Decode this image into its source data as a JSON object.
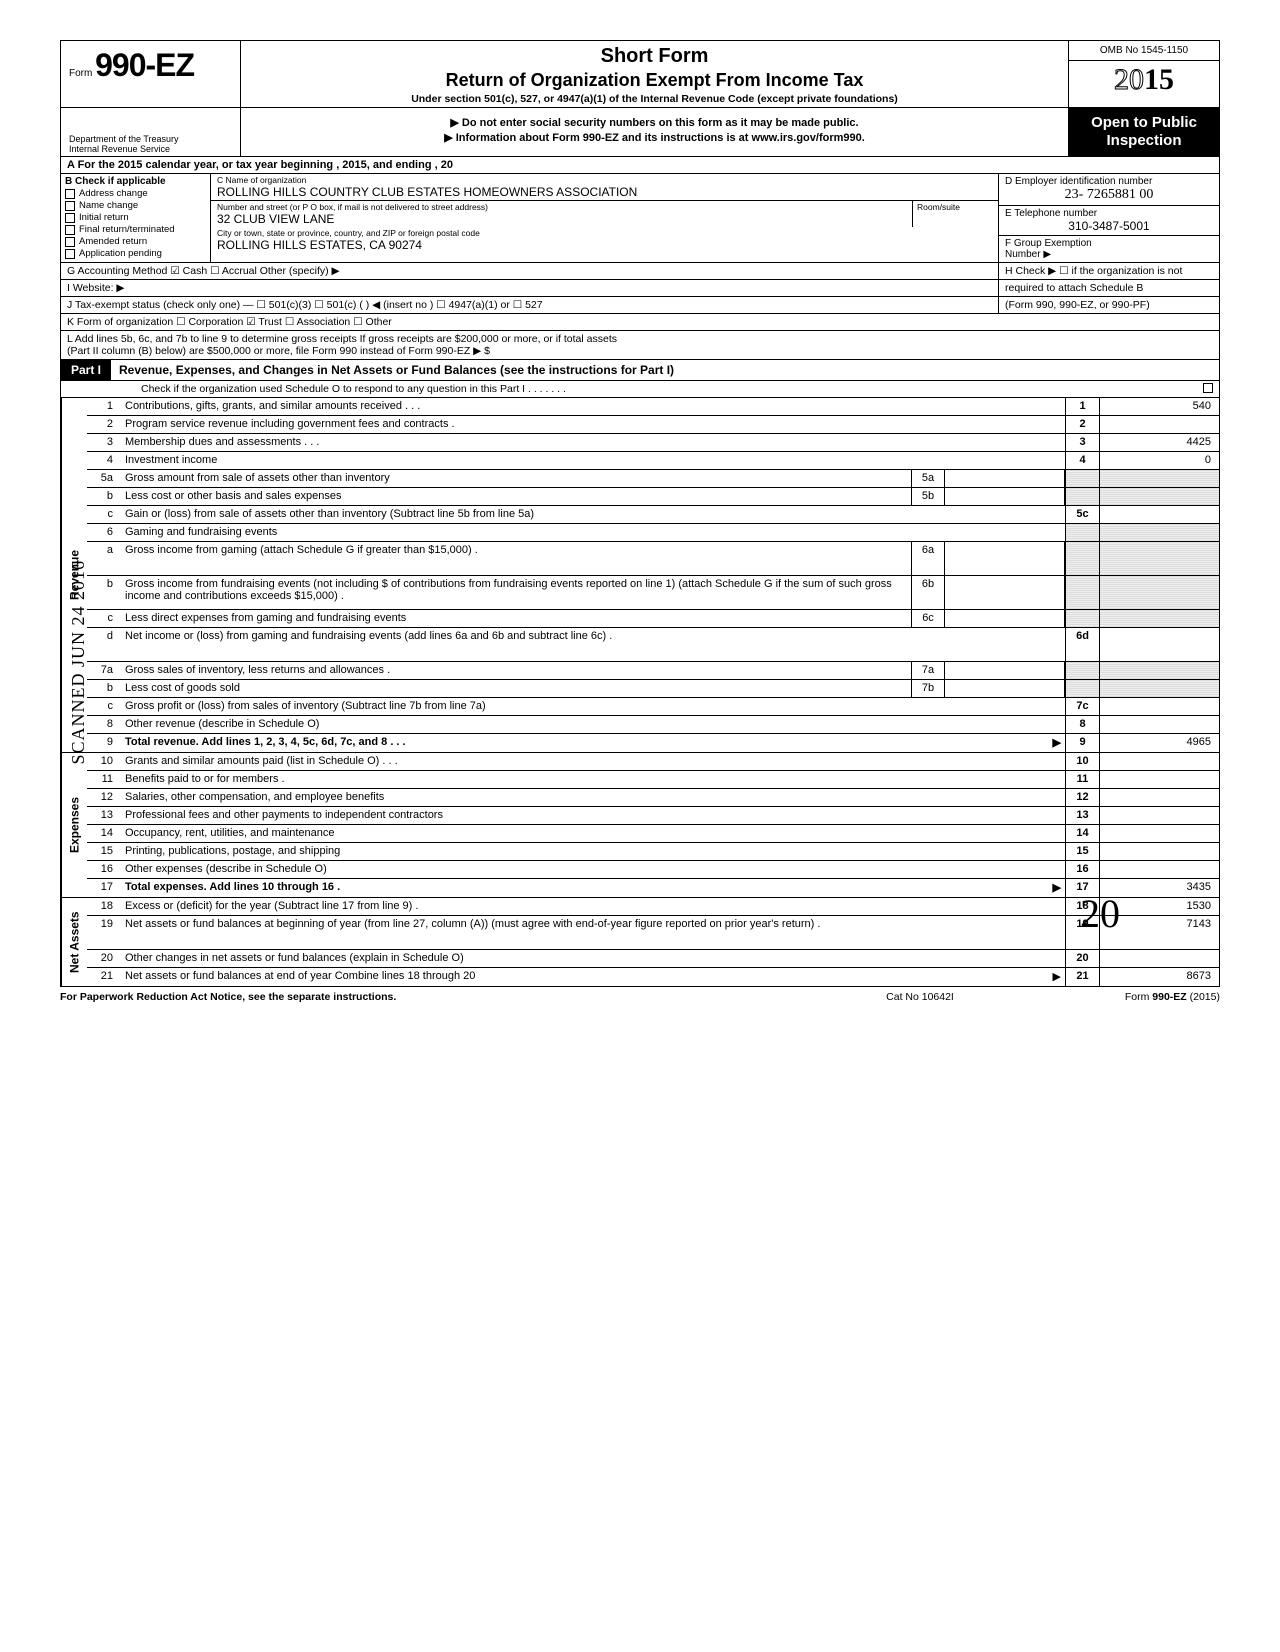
{
  "header": {
    "form_prefix": "Form",
    "form_number": "990-EZ",
    "title1": "Short Form",
    "title2": "Return of Organization Exempt From Income Tax",
    "title3": "Under section 501(c), 527, or 4947(a)(1) of the Internal Revenue Code (except private foundations)",
    "omb": "OMB No 1545-1150",
    "year_outline": "20",
    "year_bold": "15",
    "warn1": "▶ Do not enter social security numbers on this form as it may be made public.",
    "warn2": "▶ Information about Form 990-EZ and its instructions is at www.irs.gov/form990.",
    "dept": "Department of the Treasury\nInternal Revenue Service",
    "open": "Open to Public Inspection"
  },
  "rowA": "A  For the 2015 calendar year, or tax year beginning                                                     , 2015, and ending                                             , 20",
  "sectionB": {
    "label": "B  Check if applicable",
    "items": [
      "Address change",
      "Name change",
      "Initial return",
      "Final return/terminated",
      "Amended return",
      "Application pending"
    ]
  },
  "entity": {
    "c_label": "C  Name of organization",
    "name": "ROLLING HILLS COUNTRY CLUB ESTATES HOMEOWNERS ASSOCIATION",
    "addr_label": "Number and street (or P O  box, if mail is not delivered to street address)",
    "suite_label": "Room/suite",
    "street": "32 CLUB VIEW LANE",
    "city_label": "City or town, state or province, country, and ZIP or foreign postal code",
    "city": "ROLLING HILLS ESTATES, CA 90274",
    "d_label": "D Employer identification number",
    "ein": "23- 7265881 00",
    "e_label": "E Telephone number",
    "phone": "310-3487-5001",
    "f_label": "F  Group Exemption\n    Number  ▶"
  },
  "rowG": {
    "left": "G  Accounting Method     ☑ Cash     ☐ Accrual     Other (specify) ▶",
    "right": "H  Check ▶ ☐ if the organization is not"
  },
  "rowI": {
    "left": "I   Website: ▶",
    "right": "required to attach Schedule B"
  },
  "rowJ": {
    "left": "J  Tax-exempt status (check only one) —  ☐ 501(c)(3)   ☐ 501(c) (        ) ◀ (insert no )  ☐ 4947(a)(1) or   ☐ 527",
    "right": "(Form 990, 990-EZ, or 990-PF)"
  },
  "rowK": "K  Form of organization    ☐ Corporation     ☑ Trust            ☐ Association        ☐ Other",
  "rowL": "L  Add lines 5b, 6c, and 7b to line 9 to determine gross receipts  If gross receipts are $200,000 or more, or if total assets\n(Part II  column (B) below) are $500,000 or more, file Form 990 instead of Form 990-EZ                                                                           ▶   $",
  "part1": {
    "tag": "Part I",
    "title": "Revenue, Expenses, and Changes in Net Assets or Fund Balances (see the instructions for Part I)",
    "sub": "Check if the organization used Schedule O to respond to any question in this Part I  .   .   .   .   .   .   ."
  },
  "sections": {
    "revenue": "Revenue",
    "expenses": "Expenses",
    "netassets": "Net Assets"
  },
  "lines": [
    {
      "n": "1",
      "d": "Contributions, gifts, grants, and similar amounts received .    .   .",
      "r": "1",
      "v": "540"
    },
    {
      "n": "2",
      "d": "Program service revenue including government fees and contracts   .",
      "r": "2",
      "v": ""
    },
    {
      "n": "3",
      "d": "Membership dues and assessments     .    .   .",
      "r": "3",
      "v": "4425"
    },
    {
      "n": "4",
      "d": "Investment income",
      "r": "4",
      "v": "0"
    },
    {
      "n": "5a",
      "d": "Gross amount from sale of assets other than inventory",
      "mid": "5a"
    },
    {
      "n": "b",
      "d": "Less  cost or other basis and sales expenses",
      "mid": "5b"
    },
    {
      "n": "c",
      "d": "Gain or (loss) from sale of assets other than inventory (Subtract line 5b from line 5a)",
      "r": "5c",
      "v": ""
    },
    {
      "n": "6",
      "d": "Gaming and fundraising events",
      "shade": true
    },
    {
      "n": "a",
      "d": "Gross income from gaming (attach Schedule G if greater than $15,000)     .",
      "mid": "6a",
      "tall": true
    },
    {
      "n": "b",
      "d": "Gross income from fundraising events (not including  $                    of contributions from fundraising events reported on line 1) (attach Schedule G if the sum of such gross income and contributions exceeds $15,000)   .",
      "mid": "6b",
      "tall": true
    },
    {
      "n": "c",
      "d": "Less  direct expenses from gaming and fundraising events",
      "mid": "6c"
    },
    {
      "n": "d",
      "d": "Net income or (loss) from gaming and fundraising events (add lines 6a and 6b and subtract line 6c)    .",
      "r": "6d",
      "v": "",
      "tall": true
    },
    {
      "n": "7a",
      "d": "Gross sales of inventory, less returns and allowances   .",
      "mid": "7a"
    },
    {
      "n": "b",
      "d": "Less cost of goods sold",
      "mid": "7b"
    },
    {
      "n": "c",
      "d": "Gross profit or (loss) from sales of inventory (Subtract line 7b from line 7a)",
      "r": "7c",
      "v": ""
    },
    {
      "n": "8",
      "d": "Other revenue (describe in Schedule O)",
      "r": "8",
      "v": ""
    },
    {
      "n": "9",
      "d": "Total revenue. Add lines 1, 2, 3, 4, 5c, 6d, 7c, and 8   .   .   .",
      "r": "9",
      "v": "4965",
      "bold": true,
      "arrow": true
    }
  ],
  "exp_lines": [
    {
      "n": "10",
      "d": "Grants and similar amounts paid (list in Schedule O)     .   .   .",
      "r": "10"
    },
    {
      "n": "11",
      "d": "Benefits paid to or for members       .",
      "r": "11"
    },
    {
      "n": "12",
      "d": "Salaries, other compensation, and employee benefits",
      "r": "12"
    },
    {
      "n": "13",
      "d": "Professional fees and other payments to independent contractors",
      "r": "13"
    },
    {
      "n": "14",
      "d": "Occupancy, rent, utilities, and maintenance",
      "r": "14"
    },
    {
      "n": "15",
      "d": "Printing, publications, postage, and shipping",
      "r": "15"
    },
    {
      "n": "16",
      "d": "Other expenses (describe in Schedule O)",
      "r": "16"
    },
    {
      "n": "17",
      "d": "Total expenses. Add lines 10 through 16     .",
      "r": "17",
      "v": "3435",
      "bold": true,
      "arrow": true
    }
  ],
  "na_lines": [
    {
      "n": "18",
      "d": "Excess or (deficit) for the year (Subtract line 17 from line 9)   .",
      "r": "18",
      "v": "1530"
    },
    {
      "n": "19",
      "d": "Net assets or fund balances at beginning of year (from line 27, column (A)) (must agree with end-of-year figure reported on prior year's return)    .",
      "r": "19",
      "v": "7143",
      "tall": true
    },
    {
      "n": "20",
      "d": "Other changes in net assets or fund balances (explain in Schedule O)",
      "r": "20",
      "v": ""
    },
    {
      "n": "21",
      "d": "Net assets or fund balances at end of year  Combine lines 18 through 20",
      "r": "21",
      "v": "8673",
      "arrow": true
    }
  ],
  "footer": {
    "left": "For Paperwork Reduction Act Notice, see the separate instructions.",
    "mid": "Cat No  10642I",
    "right": "Form 990-EZ (2015)"
  },
  "stamp": "SCANNED  JUN 24 2016",
  "hand": "20",
  "watermark": ""
}
